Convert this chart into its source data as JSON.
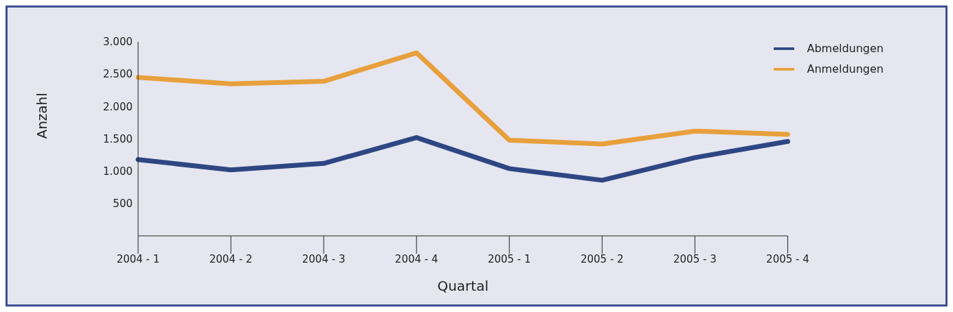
{
  "chart_data": {
    "type": "line",
    "xlabel": "Quartal",
    "ylabel": "Anzahl",
    "categories": [
      "2004 - 1",
      "2004 - 2",
      "2004 - 3",
      "2004 - 4",
      "2005 - 1",
      "2005 - 2",
      "2005 - 3",
      "2005 - 4"
    ],
    "series": [
      {
        "name": "Anmeldungen",
        "color": "#e8a03c",
        "values": [
          2450,
          2350,
          2390,
          2830,
          1480,
          1420,
          1620,
          1570
        ]
      },
      {
        "name": "Abmeldungen",
        "color": "#2e4683",
        "values": [
          1180,
          1020,
          1120,
          1520,
          1040,
          860,
          1210,
          1460
        ]
      }
    ],
    "ylim": [
      0,
      3000
    ],
    "yticks": [
      {
        "value": 500,
        "label": "500"
      },
      {
        "value": 1000,
        "label": "1.000"
      },
      {
        "value": 1500,
        "label": "1.500"
      },
      {
        "value": 2000,
        "label": "2.000"
      },
      {
        "value": 2500,
        "label": "2.500"
      },
      {
        "value": 3000,
        "label": "3.000"
      }
    ],
    "grid": false,
    "legend": "top right"
  }
}
